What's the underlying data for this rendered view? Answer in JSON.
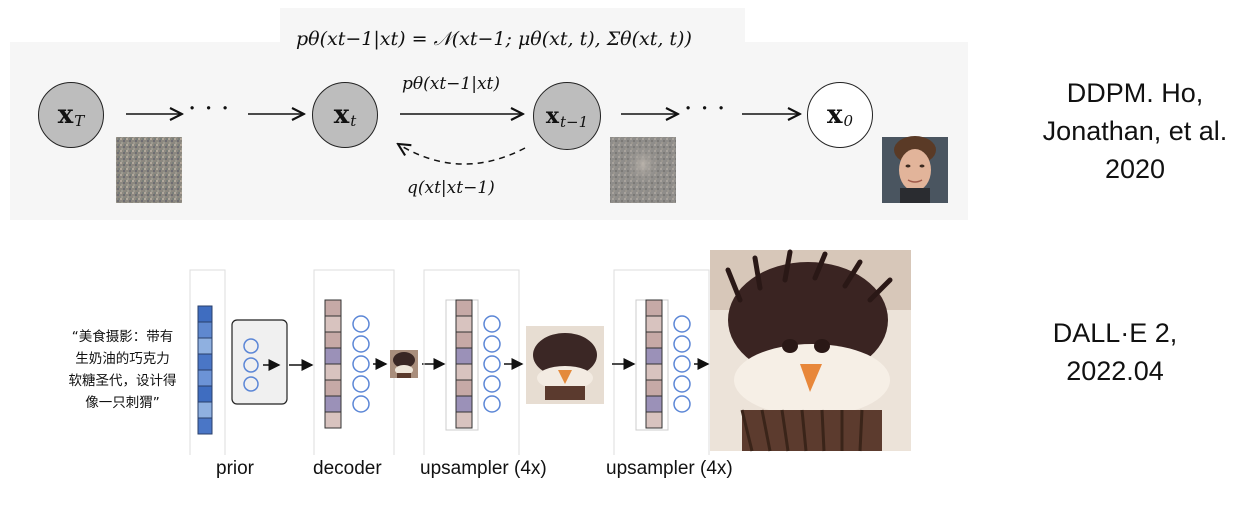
{
  "ddpm": {
    "formula": "pθ(xt−1|xt) = 𝒩(xt−1; μθ(xt, t), Σθ(xt, t))",
    "nodes": [
      {
        "base": "x",
        "sub": "T"
      },
      {
        "base": "x",
        "sub": "t"
      },
      {
        "base": "x",
        "sub": "t−1"
      },
      {
        "base": "x",
        "sub": "0"
      }
    ],
    "ellipsis": "· · ·",
    "forward_label": "pθ(xt−1|xt)",
    "reverse_label": "q(xt|xt−1)",
    "caption_lines": [
      "DDPM. Ho,",
      "Jonathan, et al.",
      "2020"
    ]
  },
  "dalle": {
    "prompt_lines": [
      "“美食摄影：带有",
      "生奶油的巧克力",
      "软糖圣代，设计得",
      "像一只刺猬”"
    ],
    "stage_labels": [
      "prior",
      "decoder",
      "upsampler (4x)",
      "upsampler (4x)"
    ],
    "caption_lines": [
      "DALL·E  2,",
      "2022.04"
    ],
    "colors": {
      "blue_dark": "#3f6dc0",
      "blue_light": "#8fb0e0",
      "rose": "#c6a9a6",
      "lavender": "#9b91b8",
      "circle_stroke": "#5b86d6"
    }
  }
}
